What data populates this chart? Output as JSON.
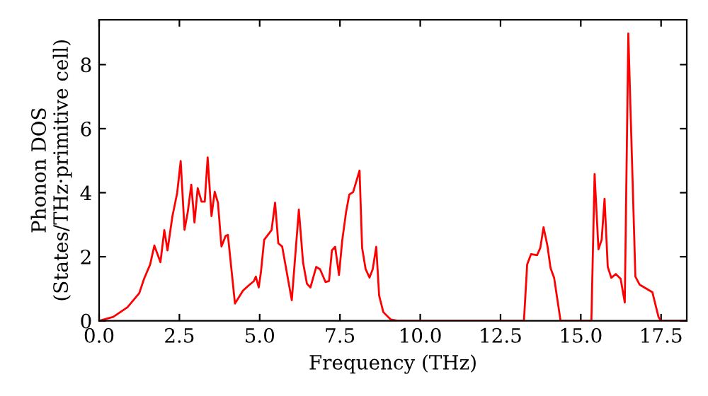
{
  "chart_data": {
    "type": "line",
    "xlabel": "Frequency (THz)",
    "ylabel": "Phonon DOS\n(States/THz·primitive cell)",
    "series": [
      {
        "color": "#ff0000",
        "x": [
          0.0,
          0.44,
          0.88,
          1.25,
          1.4,
          1.59,
          1.72,
          1.91,
          2.03,
          2.13,
          2.28,
          2.43,
          2.54,
          2.66,
          2.76,
          2.87,
          2.97,
          3.07,
          3.19,
          3.29,
          3.38,
          3.5,
          3.6,
          3.7,
          3.81,
          3.94,
          4.01,
          4.23,
          4.48,
          4.63,
          4.82,
          4.88,
          4.97,
          5.04,
          5.14,
          5.37,
          5.48,
          5.58,
          5.7,
          6.0,
          6.22,
          6.35,
          6.47,
          6.58,
          6.76,
          6.88,
          7.05,
          7.16,
          7.25,
          7.35,
          7.47,
          7.57,
          7.69,
          7.79,
          7.91,
          8.11,
          8.19,
          8.3,
          8.42,
          8.52,
          8.63,
          8.72,
          8.85,
          9.08,
          9.3,
          13.23,
          13.33,
          13.45,
          13.64,
          13.74,
          13.84,
          13.96,
          14.06,
          14.17,
          14.37,
          15.33,
          15.43,
          15.55,
          15.65,
          15.74,
          15.84,
          15.95,
          16.09,
          16.24,
          16.37,
          16.48,
          16.7,
          16.83,
          17.23,
          17.42,
          17.49,
          18.3
        ],
        "values": [
          0,
          0.12,
          0.42,
          0.86,
          1.31,
          1.76,
          2.35,
          1.83,
          2.83,
          2.2,
          3.25,
          3.99,
          4.99,
          2.84,
          3.39,
          4.25,
          3.07,
          4.14,
          3.72,
          3.72,
          5.1,
          3.27,
          4.03,
          3.69,
          2.32,
          2.65,
          2.68,
          0.54,
          0.94,
          1.08,
          1.24,
          1.38,
          1.04,
          1.53,
          2.53,
          2.83,
          3.69,
          2.42,
          2.32,
          0.64,
          3.47,
          1.83,
          1.16,
          1.04,
          1.68,
          1.61,
          1.21,
          1.24,
          2.2,
          2.31,
          1.43,
          2.5,
          3.39,
          3.94,
          4.02,
          4.69,
          2.28,
          1.61,
          1.35,
          1.61,
          2.31,
          0.79,
          0.27,
          0.04,
          0,
          0,
          1.76,
          2.08,
          2.05,
          2.28,
          2.92,
          2.35,
          1.64,
          1.34,
          0,
          0,
          4.58,
          2.23,
          2.53,
          3.81,
          1.68,
          1.34,
          1.46,
          1.31,
          0.57,
          8.97,
          1.38,
          1.13,
          0.89,
          0.12,
          0,
          0
        ]
      }
    ],
    "xlim": [
      0,
      18.3
    ],
    "ylim": [
      0,
      9.4
    ],
    "xticks": [
      {
        "value": 0,
        "label": "0.0"
      },
      {
        "value": 2.5,
        "label": "2.5"
      },
      {
        "value": 5,
        "label": "5.0"
      },
      {
        "value": 7.5,
        "label": "7.5"
      },
      {
        "value": 10,
        "label": "10.0"
      },
      {
        "value": 12.5,
        "label": "12.5"
      },
      {
        "value": 15,
        "label": "15.0"
      },
      {
        "value": 17.5,
        "label": "17.5"
      }
    ],
    "yticks": [
      0,
      2,
      4,
      6,
      8
    ],
    "grid": false,
    "legend": false,
    "marker": "none",
    "line_style": "solid"
  }
}
